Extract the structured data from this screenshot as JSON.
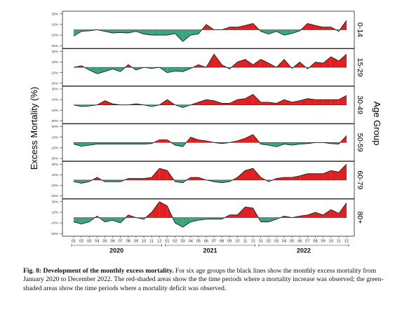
{
  "chart_data": {
    "type": "area",
    "ylabel": "Excess Mortality (%)",
    "right_axis_label": "Age Group",
    "y_ticks": [
      "30%",
      "10%",
      "-10%",
      "-30%"
    ],
    "ylim": [
      -35,
      35
    ],
    "month_labels": [
      "01",
      "02",
      "03",
      "04",
      "05",
      "06",
      "07",
      "08",
      "09",
      "10",
      "11",
      "12"
    ],
    "years": [
      "2020",
      "2021",
      "2022"
    ],
    "positive_color": "#e02020",
    "negative_color": "#3aa57a",
    "series": [
      {
        "name": "0-14",
        "values": [
          -12,
          -3,
          -2,
          0,
          -3,
          -6,
          -5,
          -6,
          -3,
          -8,
          -10,
          -10,
          -10,
          -7,
          -22,
          -10,
          -8,
          10,
          0,
          0,
          5,
          5,
          8,
          12,
          -3,
          -8,
          -3,
          -10,
          -7,
          -2,
          12,
          8,
          5,
          5,
          -3,
          18
        ]
      },
      {
        "name": "15-29",
        "values": [
          0,
          3,
          -5,
          -12,
          -8,
          -3,
          -8,
          5,
          -5,
          0,
          -2,
          0,
          -10,
          -7,
          -8,
          -2,
          5,
          0,
          25,
          5,
          -3,
          10,
          15,
          5,
          15,
          8,
          0,
          15,
          -2,
          10,
          -3,
          10,
          8,
          20,
          12,
          25
        ]
      },
      {
        "name": "30-49",
        "values": [
          0,
          -3,
          -2,
          0,
          8,
          2,
          0,
          0,
          2,
          0,
          -3,
          0,
          10,
          0,
          -5,
          0,
          5,
          10,
          8,
          3,
          3,
          10,
          12,
          20,
          5,
          5,
          3,
          10,
          5,
          8,
          12,
          10,
          10,
          10,
          10,
          18
        ]
      },
      {
        "name": "50-59",
        "values": [
          -3,
          -7,
          -5,
          -3,
          -3,
          -3,
          -3,
          -3,
          -3,
          -3,
          -2,
          5,
          5,
          -5,
          -8,
          10,
          5,
          3,
          0,
          -2,
          0,
          3,
          8,
          15,
          -3,
          -5,
          -8,
          -3,
          -5,
          -3,
          -2,
          0,
          0,
          -2,
          -3,
          13
        ]
      },
      {
        "name": "60-79",
        "values": [
          -3,
          -6,
          -3,
          5,
          -3,
          -3,
          -3,
          3,
          3,
          3,
          5,
          22,
          18,
          -3,
          -5,
          5,
          5,
          0,
          -3,
          -5,
          -3,
          5,
          18,
          22,
          5,
          -3,
          3,
          5,
          5,
          8,
          12,
          12,
          12,
          18,
          15,
          30
        ]
      },
      {
        "name": "80+",
        "values": [
          -8,
          -12,
          -8,
          3,
          -8,
          -5,
          -10,
          5,
          0,
          -3,
          10,
          30,
          22,
          -10,
          -18,
          -8,
          -5,
          -3,
          -3,
          -3,
          5,
          5,
          20,
          18,
          -8,
          -8,
          -3,
          3,
          0,
          3,
          5,
          10,
          5,
          15,
          8,
          28
        ]
      }
    ]
  },
  "caption": {
    "label": "Fig. 8: Development of the monthly excess mortality.",
    "text": "For six age groups the black lines show the monthly excess mortality from January 2020 to December 2022. The red-shaded areas show the the time periods where a mortality increase was observed; the green-shaded areas show the time periods where a mortality deficit was observed."
  }
}
